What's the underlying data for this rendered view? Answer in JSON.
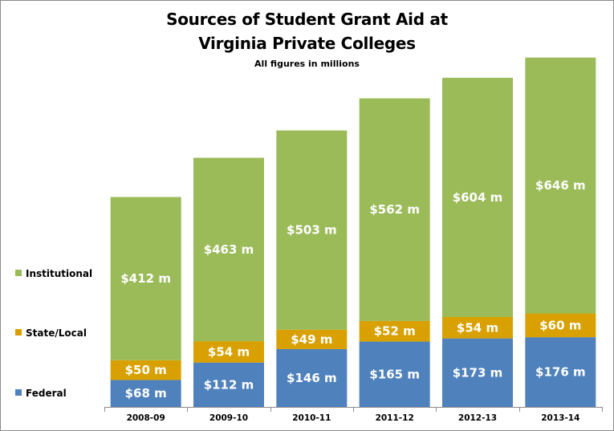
{
  "chart_data": {
    "type": "bar",
    "stacked": true,
    "title": "Sources of Student Grant Aid at",
    "title_line2": "Virginia Private Colleges",
    "subtitle": "All figures in millions",
    "categories": [
      "2008-09",
      "2009-10",
      "2010-11",
      "2011-12",
      "2012-13",
      "2013-14"
    ],
    "series": [
      {
        "name": "Federal",
        "color": "#4f81bd",
        "values": [
          68,
          112,
          146,
          165,
          173,
          176
        ],
        "labels": [
          "$68 m",
          "$112 m",
          "$146 m",
          "$165 m",
          "$173 m",
          "$176 m"
        ]
      },
      {
        "name": "State/Local",
        "color": "#d8a000",
        "values": [
          50,
          54,
          49,
          52,
          54,
          60
        ],
        "labels": [
          "$50 m",
          "$54 m",
          "$49 m",
          "$52 m",
          "$54 m",
          "$60 m"
        ]
      },
      {
        "name": "Institutional",
        "color": "#9bbb59",
        "values": [
          412,
          463,
          503,
          562,
          604,
          646
        ],
        "labels": [
          "$412 m",
          "$463 m",
          "$503 m",
          "$562 m",
          "$604 m",
          "$646 m"
        ]
      }
    ],
    "legend_position": "left",
    "grid": false
  }
}
